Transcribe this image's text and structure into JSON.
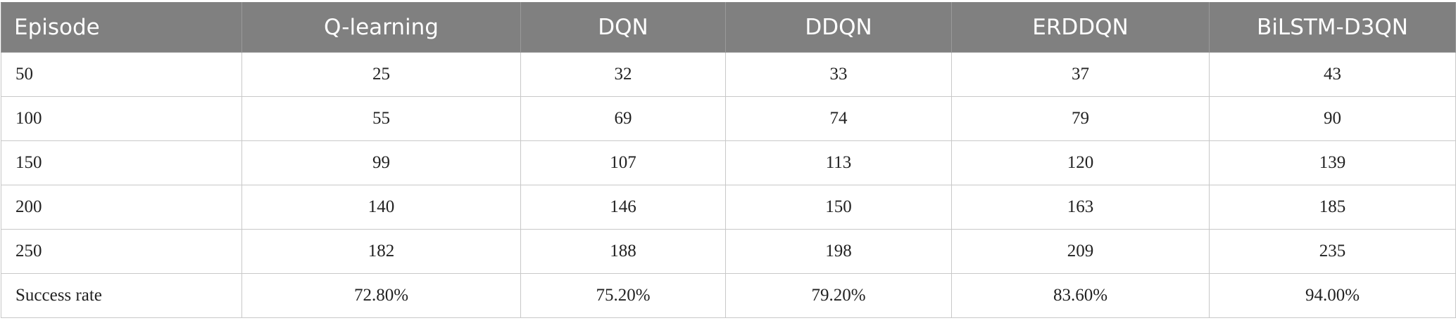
{
  "table": {
    "header": [
      "Episode",
      "Q-learning",
      "DQN",
      "DDQN",
      "ERDDQN",
      "BiLSTM-D3QN"
    ],
    "rows": [
      [
        "50",
        "25",
        "32",
        "33",
        "37",
        "43"
      ],
      [
        "100",
        "55",
        "69",
        "74",
        "79",
        "90"
      ],
      [
        "150",
        "99",
        "107",
        "113",
        "120",
        "139"
      ],
      [
        "200",
        "140",
        "146",
        "150",
        "163",
        "185"
      ],
      [
        "250",
        "182",
        "188",
        "198",
        "209",
        "235"
      ],
      [
        "Success rate",
        "72.80%",
        "75.20%",
        "79.20%",
        "83.60%",
        "94.00%"
      ]
    ]
  }
}
